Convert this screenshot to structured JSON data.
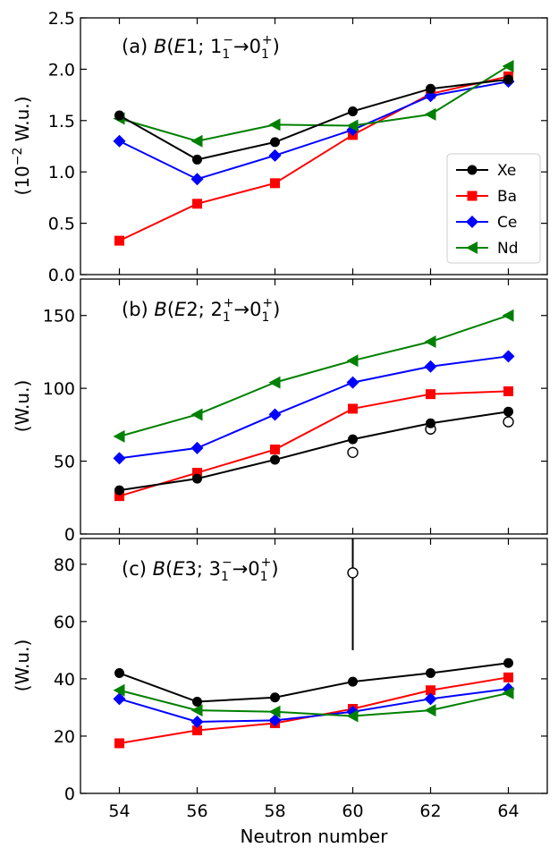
{
  "xlabel": "Neutron number",
  "x_ticks": [
    54,
    56,
    58,
    60,
    62,
    64
  ],
  "legend": [
    {
      "name": "Xe",
      "color": "#000000",
      "marker": "circle"
    },
    {
      "name": "Ba",
      "color": "#ff0000",
      "marker": "square"
    },
    {
      "name": "Ce",
      "color": "#0000ff",
      "marker": "diamond"
    },
    {
      "name": "Nd",
      "color": "#008000",
      "marker": "triangle-left"
    }
  ],
  "chart_data": [
    {
      "type": "line",
      "title": "(a) B(E1; 1₁⁻→0₁⁺)",
      "title_parts": {
        "prefix": "(a) ",
        "B": "B",
        "E": "E",
        "mult": "1",
        "state": "1",
        "parity": "−",
        "arrow": "→",
        "gs": "0",
        "gs_sub": "1",
        "gs_parity": "+"
      },
      "ylabel": "(10⁻² W.u.)",
      "ylabel_parts": {
        "open": "(10",
        "exp": "−2",
        "rest": " W.u.)"
      },
      "x": [
        54,
        56,
        58,
        60,
        62,
        64
      ],
      "xlim": [
        53,
        65
      ],
      "ylim": [
        0,
        2.5
      ],
      "y_ticks": [
        0.0,
        0.5,
        1.0,
        1.5,
        2.0,
        2.5
      ],
      "y_tick_labels": [
        "0.0",
        "0.5",
        "1.0",
        "1.5",
        "2.0",
        "2.5"
      ],
      "series": [
        {
          "name": "Xe",
          "values": [
            1.55,
            1.12,
            1.29,
            1.59,
            1.81,
            1.9
          ]
        },
        {
          "name": "Ba",
          "values": [
            0.33,
            0.69,
            0.89,
            1.36,
            1.76,
            1.93
          ]
        },
        {
          "name": "Ce",
          "values": [
            1.3,
            0.93,
            1.16,
            1.41,
            1.74,
            1.88
          ]
        },
        {
          "name": "Nd",
          "values": [
            1.52,
            1.3,
            1.46,
            1.45,
            1.56,
            2.03
          ]
        }
      ],
      "experimental": []
    },
    {
      "type": "line",
      "title": "(b) B(E2; 2₁⁺→0₁⁺)",
      "title_parts": {
        "prefix": "(b) ",
        "B": "B",
        "E": "E",
        "mult": "2",
        "state": "2",
        "parity": "+",
        "arrow": "→",
        "gs": "0",
        "gs_sub": "1",
        "gs_parity": "+"
      },
      "ylabel": "(W.u.)",
      "x": [
        54,
        56,
        58,
        60,
        62,
        64
      ],
      "xlim": [
        53,
        65
      ],
      "ylim": [
        0,
        175
      ],
      "y_ticks": [
        0,
        50,
        100,
        150
      ],
      "y_tick_labels": [
        "0",
        "50",
        "100",
        "150"
      ],
      "series": [
        {
          "name": "Xe",
          "values": [
            30,
            38,
            51,
            65,
            76,
            84
          ]
        },
        {
          "name": "Ba",
          "values": [
            26,
            42,
            58,
            86,
            96,
            98
          ]
        },
        {
          "name": "Ce",
          "values": [
            52,
            59,
            82,
            104,
            115,
            122
          ]
        },
        {
          "name": "Nd",
          "values": [
            67,
            82,
            104,
            119,
            132,
            150
          ]
        }
      ],
      "experimental": [
        {
          "x": 60,
          "y": 56
        },
        {
          "x": 62,
          "y": 72
        },
        {
          "x": 64,
          "y": 77
        }
      ]
    },
    {
      "type": "line",
      "title": "(c) B(E3; 3₁⁻→0₁⁺)",
      "title_parts": {
        "prefix": "(c) ",
        "B": "B",
        "E": "E",
        "mult": "3",
        "state": "3",
        "parity": "−",
        "arrow": "→",
        "gs": "0",
        "gs_sub": "1",
        "gs_parity": "+"
      },
      "ylabel": "(W.u.)",
      "x": [
        54,
        56,
        58,
        60,
        62,
        64
      ],
      "xlim": [
        53,
        65
      ],
      "ylim": [
        0,
        89
      ],
      "y_ticks": [
        0,
        20,
        40,
        60,
        80
      ],
      "y_tick_labels": [
        "0",
        "20",
        "40",
        "60",
        "80"
      ],
      "series": [
        {
          "name": "Xe",
          "values": [
            42,
            32,
            33.5,
            39,
            42,
            45.5
          ]
        },
        {
          "name": "Ba",
          "values": [
            17.5,
            22,
            24.5,
            29.5,
            36,
            40.5
          ]
        },
        {
          "name": "Ce",
          "values": [
            33,
            25,
            25.5,
            28.5,
            33,
            36.5
          ]
        },
        {
          "name": "Nd",
          "values": [
            36,
            29,
            28.5,
            27,
            29,
            35
          ]
        }
      ],
      "experimental": [
        {
          "x": 60,
          "y": 77,
          "err_low": 50,
          "err_high": 89
        }
      ]
    }
  ]
}
